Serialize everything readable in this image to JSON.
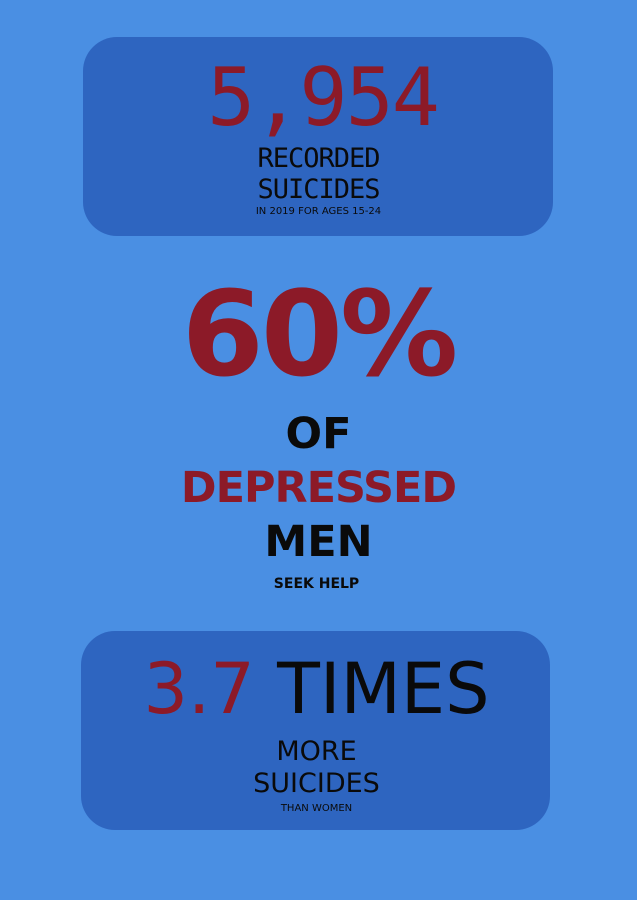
{
  "colors": {
    "background": "#4a8fe3",
    "card": "#2e65c0",
    "accent_red": "#8c1a28",
    "text_dark": "#0a0a0a"
  },
  "stat1": {
    "number": "5,954",
    "line1": "RECORDED",
    "line2": "SUICIDES",
    "note": "IN 2019 FOR AGES 15-24"
  },
  "stat2": {
    "number": "60%",
    "line1": "OF",
    "line2": "DEPRESSED",
    "line3": "MEN",
    "note": "SEEK HELP"
  },
  "stat3": {
    "number": "3.7",
    "unit": "TIMES",
    "line1": "MORE",
    "line2": "SUICIDES",
    "note": "THAN WOMEN"
  }
}
